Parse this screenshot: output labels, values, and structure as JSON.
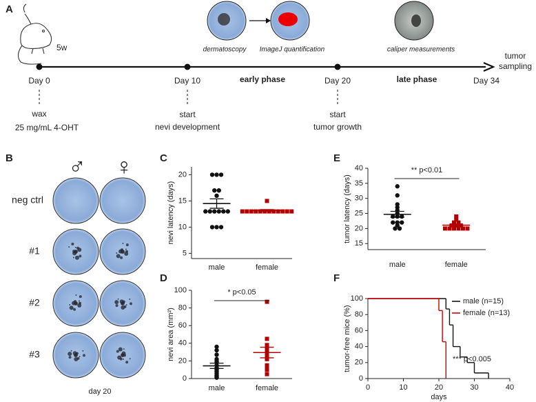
{
  "panel_labels": [
    "A",
    "B",
    "C",
    "D",
    "E",
    "F"
  ],
  "timeline": {
    "age": "5w",
    "images": [
      "dermatoscopy",
      "ImageJ quantification",
      "caliper measurements"
    ],
    "end_label": [
      "tumor",
      "sampling"
    ],
    "days": [
      "Day 0",
      "Day 10",
      "Day 20",
      "Day 34"
    ],
    "phases": [
      "early phase",
      "late phase"
    ],
    "notes": [
      [
        "wax",
        "25 mg/mL 4-OHT"
      ],
      [
        "start",
        "nevi development"
      ],
      [
        "start",
        "tumor growth"
      ]
    ]
  },
  "photos": {
    "sexes": [
      "♂",
      "♀"
    ],
    "rows": [
      "neg ctrl",
      "#1",
      "#2",
      "#3"
    ],
    "caption": "day 20"
  },
  "chart_data": [
    {
      "type": "dotplot",
      "ylabel": "nevi latency (days)",
      "ylim": [
        4,
        21.5
      ],
      "yticks": [
        5,
        10,
        15,
        20
      ],
      "series": [
        {
          "name": "male",
          "color": "#111111",
          "marker": "circle",
          "values": [
            20,
            20,
            20,
            17,
            17,
            16,
            13,
            13,
            13,
            13,
            13,
            13,
            10,
            10,
            10
          ],
          "mean": 14.5,
          "sem": 0.9
        },
        {
          "name": "female",
          "color": "#b30000",
          "marker": "square",
          "values": [
            15,
            13,
            13,
            13,
            13,
            13,
            13,
            13,
            13,
            13,
            13,
            13,
            13
          ],
          "mean": 13.2,
          "sem": 0.15
        }
      ]
    },
    {
      "type": "dotplot",
      "ylabel": "nevi area (mm²)",
      "annotation": "* p<0.05",
      "ylim": [
        0,
        100
      ],
      "yticks": [
        0,
        20,
        40,
        60,
        80,
        100
      ],
      "series": [
        {
          "name": "male",
          "color": "#111111",
          "marker": "circle",
          "values": [
            36,
            32,
            27,
            22,
            20,
            18,
            15,
            12,
            10,
            8,
            6,
            4,
            3,
            2,
            1
          ],
          "mean": 14.4,
          "sem": 3
        },
        {
          "name": "female",
          "color": "#b30000",
          "marker": "square",
          "values": [
            87,
            45,
            38,
            33,
            32,
            30,
            28,
            25,
            22,
            15,
            14,
            10,
            5
          ],
          "mean": 29.5,
          "sem": 6
        }
      ]
    },
    {
      "type": "dotplot",
      "ylabel": "tumor latency (days)",
      "annotation": "** p<0.01",
      "ylim": [
        13,
        40
      ],
      "yticks": [
        15,
        20,
        25,
        30,
        35,
        40
      ],
      "series": [
        {
          "name": "male",
          "color": "#111111",
          "marker": "circle",
          "values": [
            34,
            31,
            28,
            27,
            26,
            25,
            24,
            24,
            24,
            22,
            22,
            22,
            21,
            20,
            20
          ],
          "mean": 24.7,
          "sem": 1
        },
        {
          "name": "female",
          "color": "#b30000",
          "marker": "square",
          "values": [
            24,
            23,
            22,
            22,
            21,
            21,
            21,
            20,
            20,
            20,
            20,
            20,
            20
          ],
          "mean": 21.1,
          "sem": 0.35
        }
      ]
    },
    {
      "type": "step",
      "xlabel": "days",
      "ylabel": "tumor-free mice (%)",
      "annotation": "*** p<0.005",
      "legend": "upper right",
      "xlim": [
        0,
        40
      ],
      "xticks": [
        0,
        10,
        20,
        30,
        40
      ],
      "ylim": [
        0,
        100
      ],
      "yticks": [
        0,
        20,
        40,
        60,
        80,
        100
      ],
      "series": [
        {
          "name": "male (n=15)",
          "color": "#111111",
          "x": [
            0,
            22,
            23,
            24,
            26,
            28,
            30,
            34
          ],
          "y": [
            100,
            87,
            67,
            40,
            27,
            20,
            7,
            0
          ]
        },
        {
          "name": "female (n=13)",
          "color": "#cc0000",
          "x": [
            0,
            20,
            21,
            22
          ],
          "y": [
            100,
            85,
            46,
            0
          ]
        }
      ]
    }
  ]
}
